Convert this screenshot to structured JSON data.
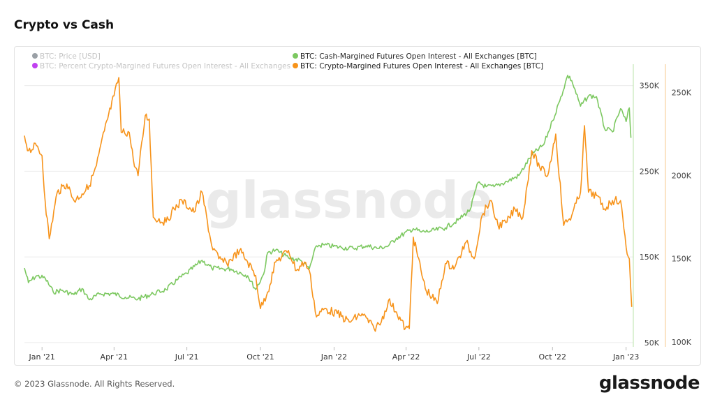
{
  "page": {
    "title": "Crypto vs Cash",
    "copyright": "© 2023 Glassnode. All Rights Reserved.",
    "logo_text": "glassnode",
    "watermark": "glassnode"
  },
  "chart_data": {
    "type": "line",
    "title": "Crypto vs Cash",
    "x_ticks": [
      "Jan '21",
      "Apr '21",
      "Jul '21",
      "Oct '21",
      "Jan '22",
      "Apr '22",
      "Jul '22",
      "Oct '22",
      "Jan '23"
    ],
    "x_range": [
      "2020-12-10",
      "2023-01-10"
    ],
    "legend": [
      {
        "name": "BTC: Price [USD]",
        "color": "#9aa0a6",
        "hidden": true
      },
      {
        "name": "BTC: Percent Crypto-Margined Futures Open Interest - All Exchanges",
        "color": "#c040f0",
        "hidden": true
      },
      {
        "name": "BTC: Cash-Margined Futures Open Interest - All Exchanges [BTC]",
        "color": "#7cc860",
        "hidden": false
      },
      {
        "name": "BTC: Crypto-Margined Futures Open Interest - All Exchanges [BTC]",
        "color": "#f7931a",
        "hidden": false
      }
    ],
    "axes": {
      "green_axis": {
        "ticks": [
          "350K",
          "250K",
          "150K",
          "50K"
        ],
        "values": [
          350000,
          250000,
          150000,
          50000
        ],
        "range": [
          45000,
          375000
        ]
      },
      "orange_axis": {
        "ticks": [
          "250K",
          "200K",
          "150K",
          "100K"
        ],
        "values": [
          250000,
          200000,
          150000,
          100000
        ],
        "range": [
          97000,
          267000
        ]
      }
    },
    "series": [
      {
        "name": "BTC: Cash-Margined Futures Open Interest - All Exchanges [BTC]",
        "color": "#7cc860",
        "axis": "green_axis",
        "points": [
          [
            "2020-12-10",
            137000
          ],
          [
            "2020-12-15",
            120000
          ],
          [
            "2020-12-25",
            128000
          ],
          [
            "2021-01-05",
            125000
          ],
          [
            "2021-01-15",
            109000
          ],
          [
            "2021-01-25",
            111000
          ],
          [
            "2021-02-10",
            106000
          ],
          [
            "2021-02-20",
            113000
          ],
          [
            "2021-03-01",
            100000
          ],
          [
            "2021-03-15",
            107000
          ],
          [
            "2021-04-01",
            107000
          ],
          [
            "2021-04-15",
            103000
          ],
          [
            "2021-05-01",
            101000
          ],
          [
            "2021-05-20",
            107000
          ],
          [
            "2021-06-05",
            112000
          ],
          [
            "2021-06-20",
            124000
          ],
          [
            "2021-07-01",
            131000
          ],
          [
            "2021-07-20",
            146000
          ],
          [
            "2021-08-01",
            137000
          ],
          [
            "2021-08-15",
            136000
          ],
          [
            "2021-08-25",
            136000
          ],
          [
            "2021-09-15",
            128000
          ],
          [
            "2021-09-25",
            112000
          ],
          [
            "2021-10-05",
            130000
          ],
          [
            "2021-10-10",
            155000
          ],
          [
            "2021-10-20",
            158000
          ],
          [
            "2021-11-05",
            149000
          ],
          [
            "2021-11-20",
            146000
          ],
          [
            "2021-12-01",
            136000
          ],
          [
            "2021-12-10",
            163000
          ],
          [
            "2021-12-20",
            164000
          ],
          [
            "2022-01-10",
            161000
          ],
          [
            "2022-01-25",
            160000
          ],
          [
            "2022-02-10",
            163000
          ],
          [
            "2022-02-25",
            160000
          ],
          [
            "2022-03-10",
            163000
          ],
          [
            "2022-03-20",
            172000
          ],
          [
            "2022-04-10",
            183000
          ],
          [
            "2022-04-20",
            179000
          ],
          [
            "2022-05-01",
            180000
          ],
          [
            "2022-05-20",
            184000
          ],
          [
            "2022-06-05",
            193000
          ],
          [
            "2022-06-20",
            205000
          ],
          [
            "2022-06-30",
            237000
          ],
          [
            "2022-07-10",
            232000
          ],
          [
            "2022-07-20",
            232000
          ],
          [
            "2022-08-05",
            238000
          ],
          [
            "2022-08-20",
            245000
          ],
          [
            "2022-09-05",
            269000
          ],
          [
            "2022-09-20",
            281000
          ],
          [
            "2022-10-01",
            309000
          ],
          [
            "2022-10-10",
            332000
          ],
          [
            "2022-10-20",
            362000
          ],
          [
            "2022-10-25",
            356000
          ],
          [
            "2022-11-05",
            326000
          ],
          [
            "2022-11-15",
            338000
          ],
          [
            "2022-11-25",
            337000
          ],
          [
            "2022-12-05",
            300000
          ],
          [
            "2022-12-15",
            296000
          ],
          [
            "2022-12-25",
            323000
          ],
          [
            "2023-01-01",
            308000
          ],
          [
            "2023-01-05",
            324000
          ],
          [
            "2023-01-07",
            289000
          ]
        ]
      },
      {
        "name": "BTC: Crypto-Margined Futures Open Interest - All Exchanges [BTC]",
        "color": "#f7931a",
        "axis": "orange_axis",
        "points": [
          [
            "2020-12-10",
            224000
          ],
          [
            "2020-12-15",
            215000
          ],
          [
            "2020-12-25",
            218000
          ],
          [
            "2021-01-01",
            212000
          ],
          [
            "2021-01-05",
            184000
          ],
          [
            "2021-01-10",
            162000
          ],
          [
            "2021-01-20",
            190000
          ],
          [
            "2021-02-01",
            195000
          ],
          [
            "2021-02-10",
            185000
          ],
          [
            "2021-02-20",
            189000
          ],
          [
            "2021-03-01",
            194000
          ],
          [
            "2021-03-10",
            206000
          ],
          [
            "2021-03-20",
            227000
          ],
          [
            "2021-04-01",
            248000
          ],
          [
            "2021-04-07",
            259000
          ],
          [
            "2021-04-10",
            226000
          ],
          [
            "2021-04-20",
            226000
          ],
          [
            "2021-04-25",
            210000
          ],
          [
            "2021-05-01",
            200000
          ],
          [
            "2021-05-10",
            236000
          ],
          [
            "2021-05-15",
            234000
          ],
          [
            "2021-05-20",
            175000
          ],
          [
            "2021-06-05",
            172000
          ],
          [
            "2021-06-15",
            180000
          ],
          [
            "2021-06-25",
            185000
          ],
          [
            "2021-07-10",
            178000
          ],
          [
            "2021-07-20",
            190000
          ],
          [
            "2021-08-01",
            158000
          ],
          [
            "2021-08-10",
            150000
          ],
          [
            "2021-08-20",
            147000
          ],
          [
            "2021-09-05",
            155000
          ],
          [
            "2021-09-15",
            148000
          ],
          [
            "2021-09-25",
            140000
          ],
          [
            "2021-10-01",
            120000
          ],
          [
            "2021-10-10",
            130000
          ],
          [
            "2021-10-20",
            148000
          ],
          [
            "2021-11-05",
            155000
          ],
          [
            "2021-11-15",
            143000
          ],
          [
            "2021-11-25",
            148000
          ],
          [
            "2021-12-01",
            143000
          ],
          [
            "2021-12-10",
            115000
          ],
          [
            "2021-12-20",
            120000
          ],
          [
            "2022-01-05",
            117000
          ],
          [
            "2022-01-20",
            112000
          ],
          [
            "2022-02-05",
            117000
          ],
          [
            "2022-02-20",
            108000
          ],
          [
            "2022-03-01",
            112000
          ],
          [
            "2022-03-10",
            125000
          ],
          [
            "2022-03-20",
            118000
          ],
          [
            "2022-03-31",
            108000
          ],
          [
            "2022-04-05",
            108000
          ],
          [
            "2022-04-10",
            163000
          ],
          [
            "2022-04-25",
            132000
          ],
          [
            "2022-05-10",
            123000
          ],
          [
            "2022-05-20",
            147000
          ],
          [
            "2022-06-01",
            145000
          ],
          [
            "2022-06-15",
            160000
          ],
          [
            "2022-06-25",
            150000
          ],
          [
            "2022-07-05",
            176000
          ],
          [
            "2022-07-15",
            185000
          ],
          [
            "2022-07-25",
            170000
          ],
          [
            "2022-08-05",
            172000
          ],
          [
            "2022-08-15",
            180000
          ],
          [
            "2022-08-25",
            175000
          ],
          [
            "2022-09-05",
            215000
          ],
          [
            "2022-09-15",
            205000
          ],
          [
            "2022-09-25",
            200000
          ],
          [
            "2022-10-05",
            225000
          ],
          [
            "2022-10-15",
            170000
          ],
          [
            "2022-10-25",
            176000
          ],
          [
            "2022-11-05",
            190000
          ],
          [
            "2022-11-10",
            230000
          ],
          [
            "2022-11-15",
            190000
          ],
          [
            "2022-11-25",
            188000
          ],
          [
            "2022-12-05",
            180000
          ],
          [
            "2022-12-15",
            185000
          ],
          [
            "2022-12-25",
            185000
          ],
          [
            "2023-01-01",
            157000
          ],
          [
            "2023-01-05",
            150000
          ],
          [
            "2023-01-08",
            121000
          ]
        ]
      }
    ]
  }
}
